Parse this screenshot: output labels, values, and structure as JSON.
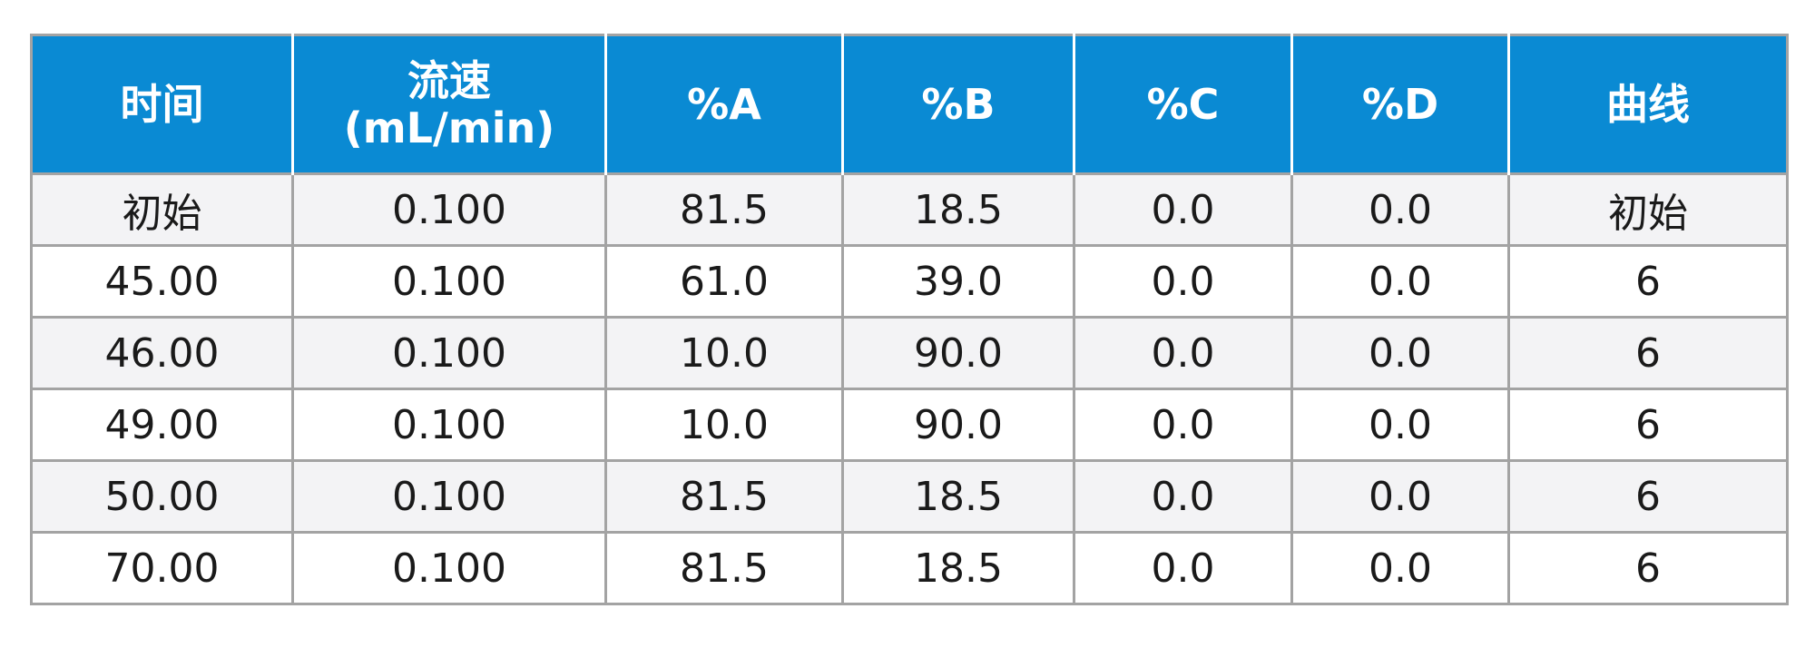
{
  "table": {
    "headers": {
      "time": "时间",
      "flow_line1": "流速",
      "flow_line2": "(mL/min)",
      "pct_a": "%A",
      "pct_b": "%B",
      "pct_c": "%C",
      "pct_d": "%D",
      "curve": "曲线"
    },
    "rows": [
      [
        "初始",
        "0.100",
        "81.5",
        "18.5",
        "0.0",
        "0.0",
        "初始"
      ],
      [
        "45.00",
        "0.100",
        "61.0",
        "39.0",
        "0.0",
        "0.0",
        "6"
      ],
      [
        "46.00",
        "0.100",
        "10.0",
        "90.0",
        "0.0",
        "0.0",
        "6"
      ],
      [
        "49.00",
        "0.100",
        "10.0",
        "90.0",
        "0.0",
        "0.0",
        "6"
      ],
      [
        "50.00",
        "0.100",
        "81.5",
        "18.5",
        "0.0",
        "0.0",
        "6"
      ],
      [
        "70.00",
        "0.100",
        "81.5",
        "18.5",
        "0.0",
        "0.0",
        "6"
      ]
    ]
  }
}
